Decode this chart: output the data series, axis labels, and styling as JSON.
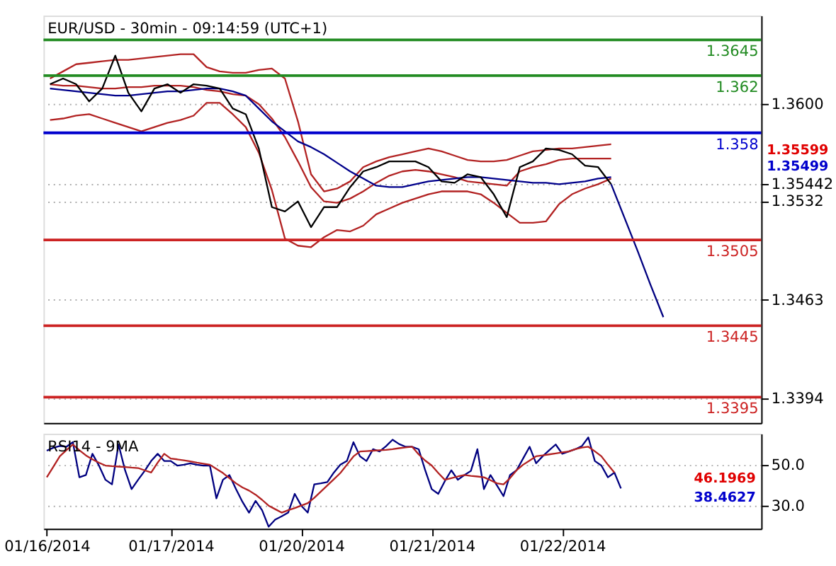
{
  "chart_data": [
    {
      "type": "line",
      "title": "EUR/USD - 30min - 09:14:59 (UTC+1)",
      "ylim": [
        1.3377,
        1.3662
      ],
      "categories": [
        null,
        null,
        null,
        null,
        null,
        null,
        null,
        null,
        null,
        null,
        null,
        null,
        null,
        null,
        null,
        null,
        null,
        null,
        null,
        null,
        null,
        null,
        null,
        null,
        null,
        null,
        null,
        null,
        null,
        null,
        null,
        null,
        null,
        null,
        null,
        null,
        null,
        null,
        null,
        null,
        null,
        null,
        null,
        null,
        null,
        null,
        null,
        null,
        null,
        null,
        null,
        null,
        null,
        null,
        null
      ],
      "yticks": [
        {
          "value": 1.36,
          "label": "1.3600"
        },
        1.35442,
        1.3532,
        1.3463,
        1.3394
      ],
      "grid": "y",
      "tick_labels": "y",
      "marker": "none",
      "line_style": "solid",
      "series": [
        {
          "color": "#b22222",
          "values": [
            1.3618,
            1.3623,
            1.3628,
            1.3629,
            1.363,
            1.3631,
            1.3631,
            1.3632,
            1.3633,
            1.3634,
            1.3635,
            1.3635,
            1.3626,
            1.3623,
            1.3622,
            1.3622,
            1.3624,
            1.3625,
            1.3618,
            1.3588,
            1.3551,
            1.3539,
            1.3541,
            1.3546,
            1.3556,
            1.356,
            1.3563,
            1.3565,
            1.3567,
            1.3569,
            1.3567,
            1.3564,
            1.3561,
            1.356,
            1.356,
            1.3561,
            1.3564,
            1.3567,
            1.3568,
            1.3569,
            1.3569,
            1.357,
            1.3571,
            1.3572,
            null,
            null,
            null,
            null,
            null,
            null,
            null,
            null,
            null,
            null,
            null
          ]
        },
        {
          "color": "#b22222",
          "values": [
            1.3614,
            1.3613,
            1.3613,
            1.3612,
            1.3611,
            1.3611,
            1.3612,
            1.3612,
            1.3613,
            1.3613,
            1.3613,
            1.3612,
            1.361,
            1.3609,
            1.3607,
            1.3606,
            1.36,
            1.359,
            1.3577,
            1.356,
            1.3542,
            1.3532,
            1.3531,
            1.3534,
            1.3539,
            1.3545,
            1.355,
            1.3553,
            1.3554,
            1.3553,
            1.3551,
            1.3549,
            1.3546,
            1.3545,
            1.3544,
            1.3543,
            1.3553,
            1.3556,
            1.3558,
            1.3561,
            1.3562,
            1.3562,
            1.3562,
            1.3562,
            null,
            null,
            null,
            null,
            null,
            null,
            null,
            null,
            null,
            null,
            null
          ]
        },
        {
          "color": "#b22222",
          "values": [
            1.3589,
            1.359,
            1.3592,
            1.3593,
            1.359,
            1.3587,
            1.3584,
            1.3581,
            1.3584,
            1.3587,
            1.3589,
            1.3592,
            1.3601,
            1.3601,
            1.3593,
            1.3584,
            1.3566,
            1.354,
            1.3506,
            1.3501,
            1.35,
            1.3507,
            1.3512,
            1.3511,
            1.3515,
            1.3523,
            1.3527,
            1.3531,
            1.3534,
            1.3537,
            1.3539,
            1.3539,
            1.3539,
            1.3537,
            1.3531,
            1.3524,
            1.3517,
            1.3517,
            1.3518,
            1.353,
            1.3537,
            1.3541,
            1.3544,
            1.3548,
            null,
            null,
            null,
            null,
            null,
            null,
            null,
            null,
            null,
            null,
            null
          ]
        },
        {
          "color": "#00008b",
          "values": [
            1.3611,
            1.361,
            1.3609,
            1.3608,
            1.3607,
            1.3606,
            1.3606,
            1.3607,
            1.3608,
            1.3609,
            1.3609,
            1.361,
            1.3611,
            1.3611,
            1.3609,
            1.3606,
            1.3597,
            1.3588,
            1.3581,
            1.3574,
            1.357,
            1.3565,
            1.3559,
            1.3553,
            1.3548,
            1.3543,
            1.3542,
            1.3542,
            1.3544,
            1.3546,
            1.3547,
            1.3548,
            1.3549,
            1.3549,
            1.3548,
            1.3547,
            1.3546,
            1.3545,
            1.3545,
            1.3544,
            1.3545,
            1.3546,
            1.3548,
            1.3549,
            null,
            null,
            null,
            null,
            null,
            null,
            null,
            null,
            null,
            null,
            null
          ]
        },
        {
          "color": "#000000",
          "values": [
            1.3614,
            1.3618,
            1.3614,
            1.3602,
            1.3611,
            1.3634,
            1.3608,
            1.3595,
            1.3611,
            1.3614,
            1.3608,
            1.3614,
            1.3613,
            1.3611,
            1.3597,
            1.3593,
            1.3569,
            1.3528,
            1.3525,
            1.3532,
            1.3514,
            1.3528,
            1.3528,
            1.3542,
            1.3553,
            1.3556,
            1.356,
            1.356,
            1.356,
            1.3556,
            1.3546,
            1.3545,
            1.3551,
            1.3549,
            1.3537,
            1.3521,
            1.3556,
            1.356,
            1.3569,
            1.3568,
            1.3565,
            1.3557,
            1.3556,
            1.3544,
            null,
            null,
            null,
            null,
            null,
            null,
            null,
            null,
            null,
            null,
            null
          ]
        },
        {
          "color": "#000080",
          "values": [
            null,
            null,
            null,
            null,
            null,
            null,
            null,
            null,
            null,
            null,
            null,
            null,
            null,
            null,
            null,
            null,
            null,
            null,
            null,
            null,
            null,
            null,
            null,
            null,
            null,
            null,
            null,
            null,
            null,
            null,
            null,
            null,
            null,
            null,
            null,
            null,
            null,
            null,
            null,
            null,
            null,
            null,
            null,
            1.3544,
            1.3521,
            1.3498,
            1.3474,
            1.3451,
            null,
            null,
            null,
            null,
            null,
            null,
            null
          ]
        }
      ],
      "ref_lines": [
        {
          "axis": "y",
          "value": 1.3645,
          "label": "1.3645",
          "color": "#228b22"
        },
        {
          "axis": "y",
          "value": 1.362,
          "label": "1.362",
          "color": "#228b22"
        },
        {
          "axis": "y",
          "value": 1.358,
          "label": "1.358",
          "color": "#0000cd"
        },
        {
          "axis": "y",
          "value": 1.3505,
          "label": "1.3505",
          "color": "#cc2222"
        },
        {
          "axis": "y",
          "value": 1.3445,
          "label": "1.3445",
          "color": "#cc2222"
        },
        {
          "axis": "y",
          "value": 1.3395,
          "label": "1.3395",
          "color": "#cc2222"
        }
      ],
      "annotations": [
        "1.35599",
        "1.35499"
      ]
    },
    {
      "type": "line",
      "title": "RSI14 - 9MA",
      "ylim": [
        19,
        65
      ],
      "categories": [
        "01/16/2014",
        null,
        null,
        null,
        null,
        null,
        null,
        null,
        null,
        null,
        null,
        null,
        null,
        null,
        null,
        null,
        null,
        null,
        null,
        "01/17/2014",
        null,
        null,
        null,
        null,
        null,
        null,
        null,
        null,
        null,
        null,
        null,
        null,
        null,
        null,
        null,
        null,
        null,
        null,
        null,
        "01/20/2014",
        null,
        null,
        null,
        null,
        null,
        null,
        null,
        null,
        null,
        null,
        null,
        null,
        null,
        null,
        null,
        null,
        null,
        null,
        null,
        "01/21/2014",
        null,
        null,
        null,
        null,
        null,
        null,
        null,
        null,
        null,
        null,
        null,
        null,
        null,
        null,
        null,
        null,
        null,
        null,
        null,
        "01/22/2014",
        null,
        null,
        null,
        null,
        null,
        null,
        null,
        null,
        null,
        null,
        null,
        null,
        null,
        null,
        null,
        null,
        null,
        null,
        null,
        null,
        null,
        null,
        null,
        null,
        null,
        null,
        null,
        null,
        null,
        null
      ],
      "yticks": [
        {
          "value": 50,
          "label": "50.0"
        },
        {
          "value": 30,
          "label": "30.0"
        }
      ],
      "grid": "y",
      "marker": "none",
      "line_style": "solid",
      "series": [
        {
          "color": "#000080",
          "values": [
            56.8,
            58.2,
            59.1,
            58.7,
            60.9,
            43.9,
            45.0,
            55.3,
            49.6,
            42.7,
            40.5,
            59.8,
            47.3,
            38.2,
            42.7,
            47.0,
            51.8,
            55.3,
            51.8,
            51.8,
            49.6,
            50.0,
            50.7,
            50.0,
            49.6,
            49.6,
            33.7,
            42.7,
            45.0,
            38.2,
            32.0,
            26.8,
            32.5,
            28.0,
            20.0,
            23.4,
            25.0,
            26.8,
            35.9,
            30.2,
            26.8,
            40.5,
            41.0,
            41.6,
            46.2,
            50.0,
            51.8,
            60.9,
            54.1,
            51.8,
            57.5,
            56.4,
            59.0,
            62.1,
            60.0,
            58.7,
            58.7,
            57.5,
            47.3,
            38.2,
            35.9,
            42.0,
            47.3,
            42.7,
            45.0,
            47.0,
            57.5,
            38.2,
            45.0,
            40.0,
            34.8,
            45.0,
            47.3,
            53.0,
            58.7,
            50.7,
            54.1,
            57.0,
            59.8,
            55.3,
            56.4,
            57.5,
            59.0,
            63.2,
            51.8,
            49.6,
            43.9,
            46.2,
            38.5,
            null,
            null,
            null,
            null,
            null,
            null,
            null,
            null,
            null,
            null,
            null,
            null,
            null,
            null,
            null,
            null,
            null,
            null,
            null,
            null,
            null
          ]
        },
        {
          "color": "#b22222",
          "values": [
            43.9,
            49.0,
            54.1,
            57.0,
            59.8,
            57.0,
            54.5,
            52.6,
            51.0,
            49.6,
            49.3,
            49.1,
            48.9,
            48.6,
            48.4,
            47.3,
            46.2,
            51.0,
            55.3,
            53.0,
            52.6,
            52.1,
            51.6,
            51.0,
            50.5,
            50.0,
            48.0,
            46.0,
            43.5,
            41.0,
            39.0,
            37.5,
            35.5,
            33.0,
            30.2,
            28.5,
            26.8,
            28.0,
            29.0,
            30.2,
            31.4,
            34.0,
            37.0,
            40.0,
            43.0,
            46.0,
            50.0,
            54.0,
            56.4,
            56.6,
            56.8,
            57.0,
            57.2,
            57.5,
            58.0,
            58.4,
            58.7,
            55.0,
            52.0,
            49.6,
            46.0,
            42.7,
            43.5,
            44.3,
            45.0,
            44.6,
            44.3,
            43.9,
            42.5,
            41.0,
            40.5,
            43.5,
            47.3,
            50.0,
            52.0,
            54.1,
            54.5,
            55.0,
            55.5,
            56.0,
            56.4,
            57.5,
            58.3,
            58.7,
            56.5,
            54.1,
            50.0,
            46.2,
            null,
            null,
            null,
            null,
            null,
            null,
            null,
            null,
            null,
            null,
            null,
            null,
            null,
            null,
            null,
            null,
            null,
            null,
            null,
            null,
            null,
            null
          ]
        }
      ],
      "annotations": [
        "46.1969",
        "38.4627"
      ]
    }
  ]
}
